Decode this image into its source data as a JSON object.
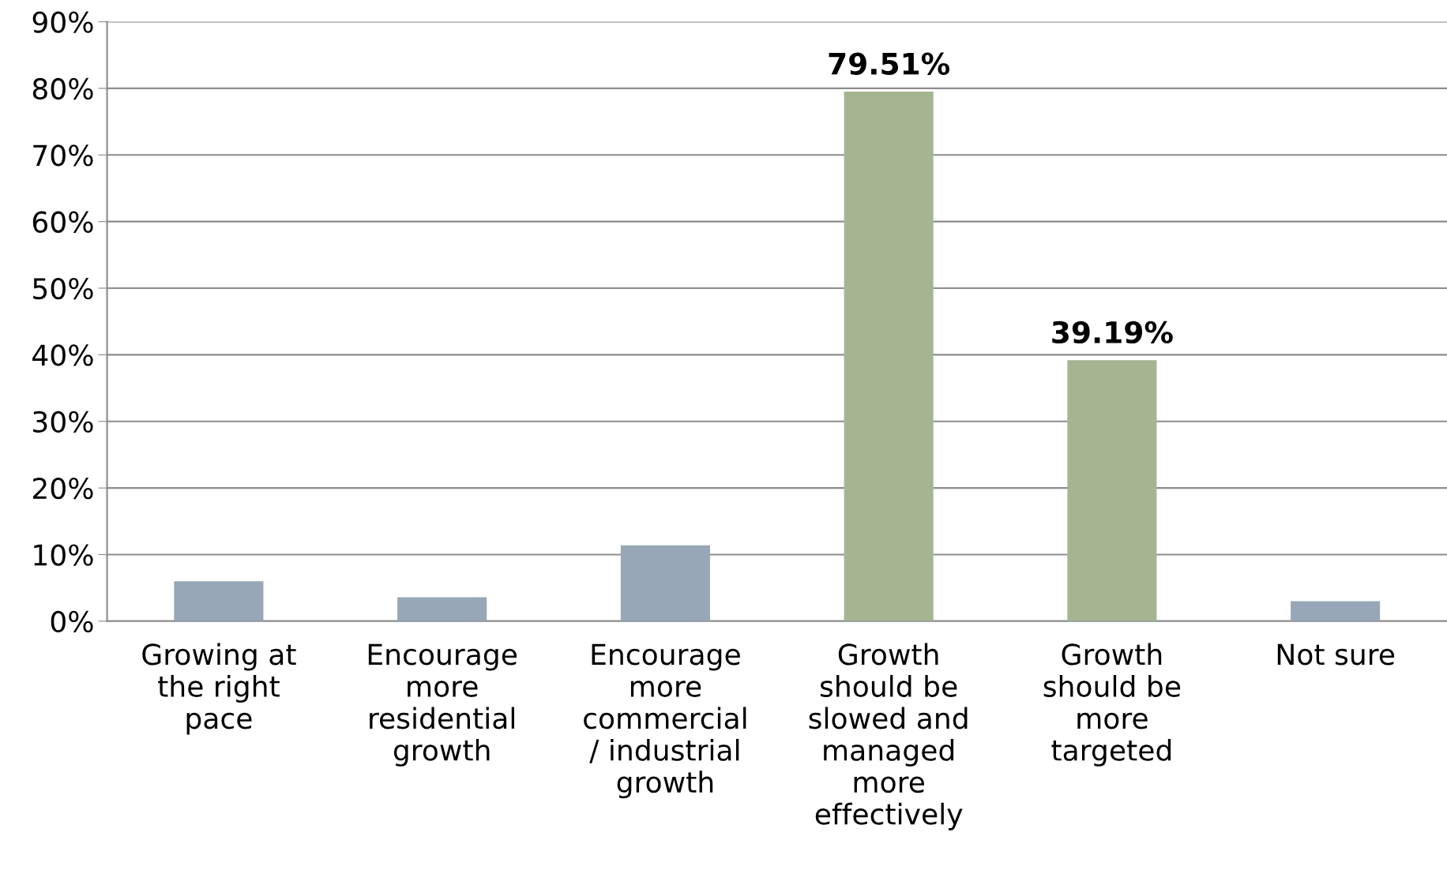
{
  "chart_data": {
    "type": "bar",
    "categories": [
      "Growing at\nthe right\npace",
      "Encourage\nmore\nresidential\ngrowth",
      "Encourage\nmore\ncommercial\n/ industrial\ngrowth",
      "Growth\nshould be\nslowed and\nmanaged\nmore\neffectively",
      "Growth\nshould be\nmore\ntargeted",
      "Not sure"
    ],
    "values": [
      6.0,
      3.6,
      11.4,
      79.51,
      39.19,
      3.0
    ],
    "colors": [
      "#97a7b8",
      "#97a7b8",
      "#97a7b8",
      "#a5b592",
      "#a5b592",
      "#97a7b8"
    ],
    "value_labels": [
      null,
      null,
      null,
      "79.51%",
      "39.19%",
      null
    ],
    "ylim": [
      0,
      90
    ],
    "yticks": [
      {
        "value": 0,
        "label": "0%"
      },
      {
        "value": 10,
        "label": "10%"
      },
      {
        "value": 20,
        "label": "20%"
      },
      {
        "value": 30,
        "label": "30%"
      },
      {
        "value": 40,
        "label": "40%"
      },
      {
        "value": 50,
        "label": "50%"
      },
      {
        "value": 60,
        "label": "60%"
      },
      {
        "value": 70,
        "label": "70%"
      },
      {
        "value": 80,
        "label": "80%"
      },
      {
        "value": 90,
        "label": "90%"
      }
    ],
    "grid": "y",
    "legend": false
  }
}
